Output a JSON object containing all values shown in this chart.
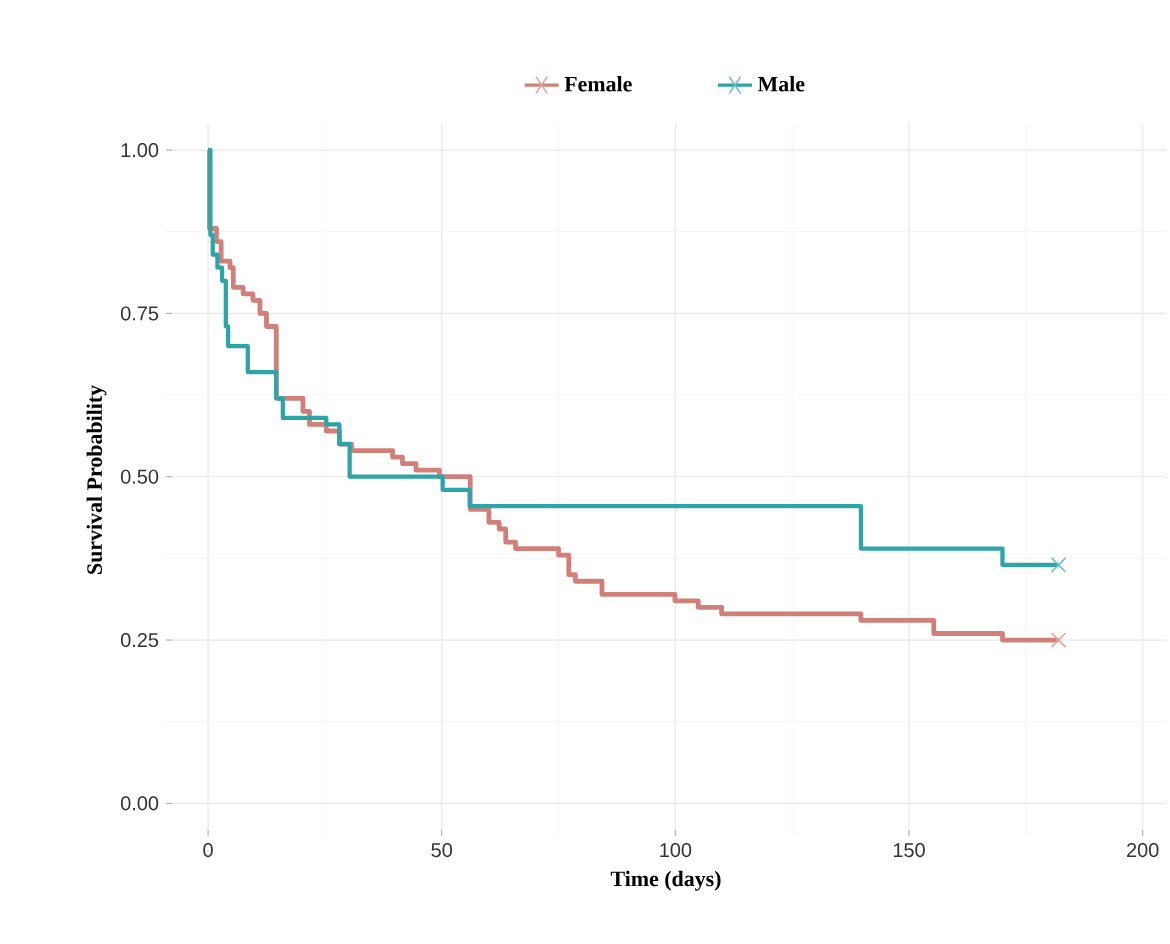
{
  "chart_data": {
    "type": "step",
    "xlabel": "Time (days)",
    "ylabel": "Survival Probability",
    "xlim": [
      -9,
      205
    ],
    "xticks": [
      0,
      50,
      100,
      150,
      200
    ],
    "ylim": [
      -0.05,
      1.04
    ],
    "yticks": [
      {
        "value": 0,
        "label": "0.00"
      },
      {
        "value": 0.25,
        "label": "0.25"
      },
      {
        "value": 0.5,
        "label": "0.50"
      },
      {
        "value": 0.75,
        "label": "0.75"
      },
      {
        "value": 1,
        "label": "1.00"
      }
    ],
    "grid": true,
    "legend": "top",
    "series": [
      {
        "name": "Female",
        "color": "#d08078",
        "x": [
          0,
          0.3,
          1.8,
          2.8,
          4.7,
          5.4,
          7.5,
          9.6,
          11.1,
          12.5,
          14.6,
          20.3,
          21.7,
          25.3,
          28.1,
          30.7,
          39.5,
          41.6,
          44.5,
          49.5,
          56.1,
          60.1,
          62.3,
          63.7,
          65.8,
          75,
          77.2,
          78.6,
          84.3,
          99.9,
          104.9,
          109.9,
          139.7,
          155.3,
          170,
          182
        ],
        "values": [
          1.0,
          0.88,
          0.86,
          0.83,
          0.82,
          0.79,
          0.78,
          0.77,
          0.75,
          0.73,
          0.62,
          0.6,
          0.58,
          0.57,
          0.55,
          0.54,
          0.53,
          0.52,
          0.51,
          0.5,
          0.45,
          0.43,
          0.42,
          0.4,
          0.39,
          0.38,
          0.35,
          0.34,
          0.32,
          0.31,
          0.3,
          0.29,
          0.28,
          0.26,
          0.25,
          0.25
        ]
      },
      {
        "name": "Male",
        "color": "#2ba5a7",
        "x": [
          0,
          0.5,
          1,
          2,
          3,
          3.8,
          4.3,
          8.5,
          14.6,
          16,
          25.3,
          28.1,
          30.3,
          50.2,
          56,
          139.7,
          170,
          182
        ],
        "values": [
          1.0,
          0.87,
          0.84,
          0.82,
          0.8,
          0.73,
          0.7,
          0.66,
          0.62,
          0.59,
          0.58,
          0.55,
          0.5,
          0.48,
          0.455,
          0.39,
          0.365,
          0.365
        ]
      },
      {
        "type": "scatter",
        "marker": "cross",
        "color": "#dea6a0",
        "x": [
          182
        ],
        "values": [
          0.25
        ]
      },
      {
        "type": "scatter",
        "marker": "cross",
        "color": "#6bc0c1",
        "x": [
          182
        ],
        "values": [
          0.365
        ]
      }
    ]
  }
}
